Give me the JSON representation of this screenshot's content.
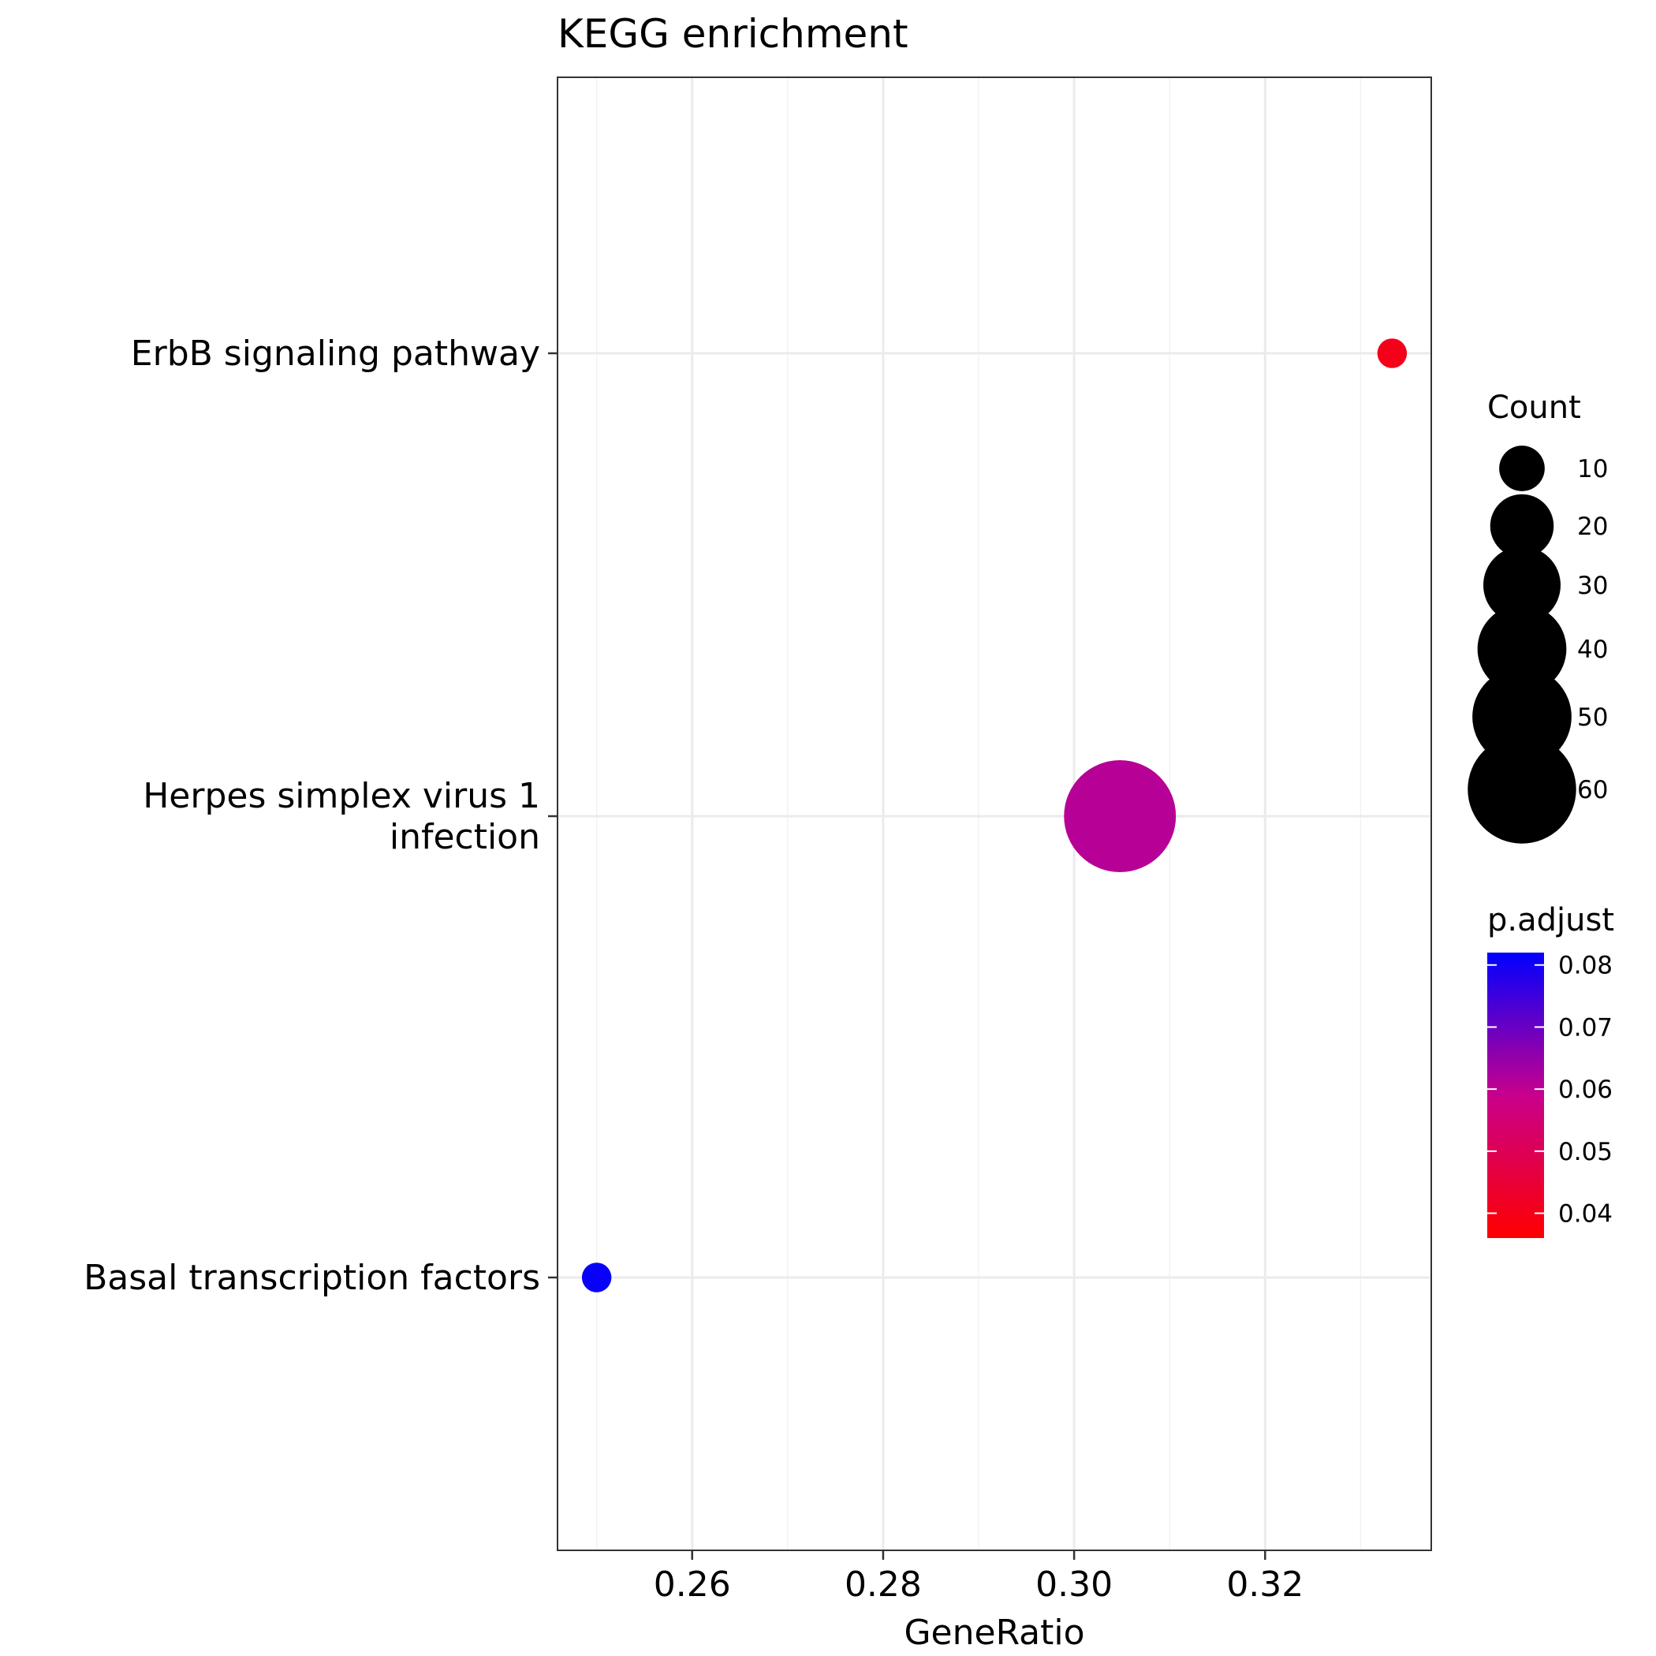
{
  "chart_data": {
    "type": "scatter",
    "title": "KEGG enrichment",
    "xlabel": "GeneRatio",
    "ylabel": "",
    "xlim": [
      0.2459,
      0.3374
    ],
    "x_ticks": [
      0.26,
      0.28,
      0.3,
      0.32
    ],
    "x_tick_labels": [
      "0.26",
      "0.28",
      "0.30",
      "0.32"
    ],
    "grid": true,
    "categories": [
      "ErbB signaling pathway",
      "Herpes simplex virus 1 infection",
      "Basal transcription factors"
    ],
    "category_labels": [
      [
        "ErbB signaling pathway"
      ],
      [
        "Herpes simplex virus 1",
        "infection"
      ],
      [
        "Basal transcription factors"
      ]
    ],
    "points": [
      {
        "category": "ErbB signaling pathway",
        "x": 0.3333,
        "count": 4,
        "p_adjust": 0.04
      },
      {
        "category": "Herpes simplex virus 1 infection",
        "x": 0.3048,
        "count": 64,
        "p_adjust": 0.061
      },
      {
        "category": "Basal transcription factors",
        "x": 0.25,
        "count": 4,
        "p_adjust": 0.081
      }
    ],
    "legend_position": "right",
    "size_legend": {
      "title": "Count",
      "values": [
        10,
        20,
        30,
        40,
        50,
        60
      ],
      "labels": [
        "10",
        "20",
        "30",
        "40",
        "50",
        "60"
      ]
    },
    "color_legend": {
      "title": "p.adjust",
      "range": [
        0.036,
        0.082
      ],
      "ticks": [
        0.04,
        0.05,
        0.06,
        0.07,
        0.08
      ],
      "tick_labels": [
        "0.04",
        "0.05",
        "0.06",
        "0.07",
        "0.08"
      ],
      "low_color": "#ff0000",
      "high_color": "#0000ff"
    }
  }
}
